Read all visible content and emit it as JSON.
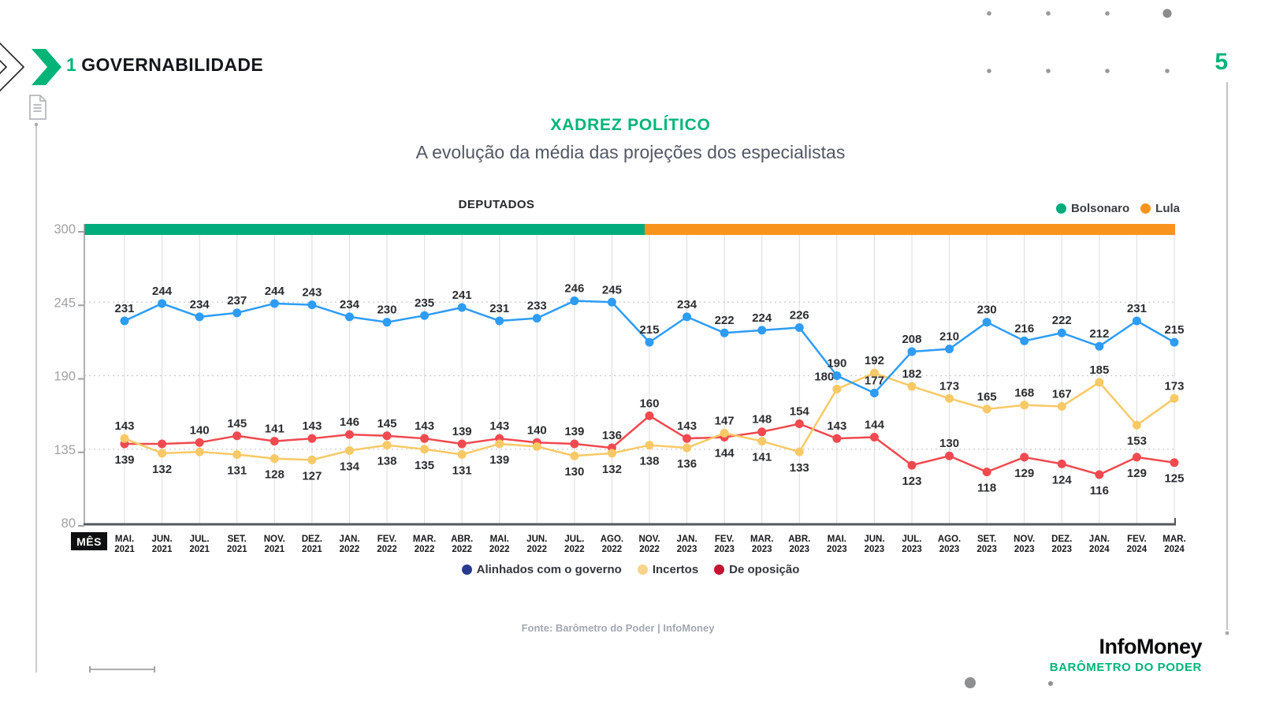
{
  "page": {
    "section_number": "1",
    "section_title": "GOVERNABILIDADE",
    "page_number": "5"
  },
  "footer": {
    "brand": "InfoMoney",
    "product": "BARÔMETRO DO PODER"
  },
  "chart_data": {
    "type": "line",
    "title": "XADREZ POLÍTICO",
    "subtitle": "A evolução da média das projeções dos especialistas",
    "group_label": "DEPUTADOS",
    "x_axis_label": "MÊS",
    "source": "Fonte: Barômetro do Poder | InfoMoney",
    "ylim": [
      80,
      300
    ],
    "y_ticks": [
      80,
      135,
      190,
      245,
      300
    ],
    "legend_position": "bottom",
    "grid": "vertical-solid, horizontal-dotted at 135/190/245",
    "categories": [
      [
        "MAI.",
        "2021"
      ],
      [
        "JUN.",
        "2021"
      ],
      [
        "JUL.",
        "2021"
      ],
      [
        "SET.",
        "2021"
      ],
      [
        "NOV.",
        "2021"
      ],
      [
        "DEZ.",
        "2021"
      ],
      [
        "JAN.",
        "2022"
      ],
      [
        "FEV.",
        "2022"
      ],
      [
        "MAR.",
        "2022"
      ],
      [
        "ABR.",
        "2022"
      ],
      [
        "MAI.",
        "2022"
      ],
      [
        "JUN.",
        "2022"
      ],
      [
        "JUL.",
        "2022"
      ],
      [
        "AGO.",
        "2022"
      ],
      [
        "NOV.",
        "2022"
      ],
      [
        "JAN.",
        "2023"
      ],
      [
        "FEV.",
        "2023"
      ],
      [
        "MAR.",
        "2023"
      ],
      [
        "ABR.",
        "2023"
      ],
      [
        "MAI.",
        "2023"
      ],
      [
        "JUN.",
        "2023"
      ],
      [
        "JUL.",
        "2023"
      ],
      [
        "AGO.",
        "2023"
      ],
      [
        "SET.",
        "2023"
      ],
      [
        "NOV.",
        "2023"
      ],
      [
        "DEZ.",
        "2023"
      ],
      [
        "JAN.",
        "2024"
      ],
      [
        "FEV.",
        "2024"
      ],
      [
        "MAR.",
        "2024"
      ]
    ],
    "president_periods": [
      {
        "label": "Bolsonaro",
        "color": "#00AC7B",
        "from_index": 0,
        "to_index": 13
      },
      {
        "label": "Lula",
        "color": "#F8941E",
        "from_index": 14,
        "to_index": 28
      }
    ],
    "series": [
      {
        "name": "Alinhados com o governo",
        "line_color": "#2E9CF5",
        "legend_color": "#283A8E",
        "values": [
          231,
          244,
          234,
          237,
          244,
          243,
          234,
          230,
          235,
          241,
          231,
          233,
          246,
          245,
          215,
          234,
          222,
          224,
          226,
          190,
          177,
          208,
          210,
          230,
          216,
          222,
          212,
          231,
          215
        ],
        "labels": [
          231,
          244,
          234,
          237,
          244,
          243,
          234,
          230,
          235,
          241,
          231,
          233,
          246,
          245,
          215,
          234,
          222,
          224,
          226,
          190,
          177,
          208,
          210,
          230,
          216,
          222,
          212,
          231,
          215
        ],
        "label_side": [
          "a",
          "a",
          "a",
          "a",
          "a",
          "a",
          "a",
          "a",
          "a",
          "a",
          "a",
          "a",
          "a",
          "a",
          "a",
          "a",
          "a",
          "a",
          "a",
          "a",
          "a",
          "a",
          "a",
          "a",
          "a",
          "a",
          "a",
          "a",
          "a"
        ]
      },
      {
        "name": "Incertos",
        "line_color": "#F8C966",
        "legend_color": "#F7D38C",
        "values": [
          143,
          132,
          133,
          131,
          128,
          127,
          134,
          138,
          135,
          131,
          139,
          137,
          130,
          132,
          138,
          136,
          147,
          141,
          133,
          180,
          192,
          182,
          173,
          165,
          168,
          167,
          185,
          153,
          173
        ],
        "labels": [
          143,
          132,
          null,
          131,
          128,
          127,
          134,
          138,
          135,
          131,
          139,
          null,
          130,
          132,
          138,
          136,
          147,
          141,
          133,
          180,
          192,
          182,
          173,
          165,
          168,
          167,
          185,
          153,
          173
        ],
        "label_side": [
          "a",
          "b",
          "b",
          "b",
          "b",
          "b",
          "b",
          "b",
          "b",
          "b",
          "b",
          "b",
          "b",
          "b",
          "b",
          "b",
          "a",
          "b",
          "b",
          "a:-16",
          "a",
          "a",
          "a",
          "a",
          "a",
          "a",
          "a",
          "b",
          "a"
        ]
      },
      {
        "name": "De oposição",
        "line_color": "#F0494F",
        "legend_color": "#C31432",
        "values": [
          139,
          139,
          140,
          145,
          141,
          143,
          146,
          145,
          143,
          139,
          143,
          140,
          139,
          136,
          160,
          143,
          144,
          148,
          154,
          143,
          144,
          123,
          130,
          118,
          129,
          124,
          116,
          129,
          125
        ],
        "labels": [
          139,
          null,
          140,
          145,
          141,
          143,
          146,
          145,
          143,
          139,
          143,
          140,
          139,
          136,
          160,
          143,
          144,
          148,
          154,
          143,
          144,
          123,
          130,
          118,
          129,
          124,
          116,
          129,
          125
        ],
        "label_side": [
          "b",
          "a",
          "a",
          "a",
          "a",
          "a",
          "a",
          "a",
          "a",
          "a",
          "a",
          "a",
          "a",
          "a",
          "a",
          "a",
          "b",
          "a",
          "a",
          "a",
          "a",
          "b",
          "a",
          "b",
          "b",
          "b",
          "b",
          "b",
          "b"
        ]
      }
    ]
  }
}
